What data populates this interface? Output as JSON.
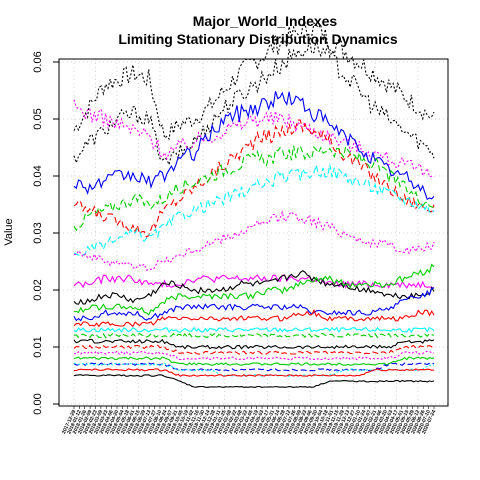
{
  "chart_data": {
    "type": "line",
    "title": "Major_World_Indexes",
    "subtitle": "Limiting Stationary Distribution Dynamics",
    "xlabel": "",
    "ylabel": "Value",
    "ylim": [
      0,
      0.068
    ],
    "yticks": [
      "0.00",
      "0.01",
      "0.02",
      "0.03",
      "0.04",
      "0.05",
      "0.06"
    ],
    "grid": true,
    "x_tick_labels": [
      "2017-12-29",
      "2018-01-12",
      "2018-01-26",
      "2018-02-09",
      "2018-02-23",
      "2018-03-09",
      "2018-03-23",
      "2018-04-06",
      "2018-04-20",
      "2018-05-04",
      "2018-05-18",
      "2018-06-01",
      "2018-06-15",
      "2018-06-29",
      "2018-07-13",
      "2018-07-27",
      "2018-08-10",
      "2018-08-24",
      "2018-09-07",
      "2018-09-21",
      "2018-10-05",
      "2018-10-19",
      "2018-11-02",
      "2018-11-16",
      "2018-11-30",
      "2018-12-14",
      "2018-12-28",
      "2019-01-11",
      "2019-01-25",
      "2019-02-08",
      "2019-02-22",
      "2019-03-08",
      "2019-03-22",
      "2019-04-05",
      "2019-04-19",
      "2019-05-03",
      "2019-05-17",
      "2019-05-31",
      "2019-06-14",
      "2019-06-28",
      "2019-07-12",
      "2019-07-26",
      "2019-08-09",
      "2019-08-23",
      "2019-09-06",
      "2019-09-20",
      "2019-10-04",
      "2019-10-18",
      "2019-11-01",
      "2019-11-15",
      "2019-11-29",
      "2019-12-13",
      "2019-12-27",
      "2020-01-10",
      "2020-01-24",
      "2020-02-07",
      "2020-02-21",
      "2020-03-06",
      "2020-03-20",
      "2020-04-03",
      "2020-04-17",
      "2020-05-01",
      "2020-05-15",
      "2020-05-29",
      "2020-06-12",
      "2020-06-26",
      "2020-07-10",
      "2020-07-24"
    ],
    "x_points": 160,
    "series": [
      {
        "color": "#000000",
        "dash": "2,2",
        "values": [
          0.048,
          0.052,
          0.056,
          0.057,
          0.058,
          0.057,
          0.047,
          0.049,
          0.05,
          0.052,
          0.055,
          0.058,
          0.06,
          0.062,
          0.064,
          0.065,
          0.066,
          0.064,
          0.062,
          0.06,
          0.058,
          0.056,
          0.054,
          0.052,
          0.05
        ]
      },
      {
        "color": "#000000",
        "dash": "2,2",
        "values": [
          0.043,
          0.046,
          0.048,
          0.05,
          0.051,
          0.05,
          0.042,
          0.044,
          0.046,
          0.049,
          0.052,
          0.054,
          0.056,
          0.058,
          0.06,
          0.062,
          0.063,
          0.061,
          0.058,
          0.055,
          0.052,
          0.05,
          0.048,
          0.046,
          0.044
        ]
      },
      {
        "color": "#ff00ff",
        "dash": "2,2",
        "values": [
          0.052,
          0.051,
          0.05,
          0.049,
          0.048,
          0.047,
          0.044,
          0.045,
          0.046,
          0.047,
          0.048,
          0.049,
          0.05,
          0.05,
          0.05,
          0.049,
          0.048,
          0.047,
          0.046,
          0.045,
          0.044,
          0.043,
          0.042,
          0.041,
          0.04
        ]
      },
      {
        "color": "#0000ff",
        "dash": "",
        "values": [
          0.039,
          0.038,
          0.039,
          0.04,
          0.04,
          0.039,
          0.04,
          0.043,
          0.044,
          0.047,
          0.05,
          0.051,
          0.052,
          0.053,
          0.054,
          0.053,
          0.051,
          0.049,
          0.047,
          0.045,
          0.043,
          0.041,
          0.04,
          0.038,
          0.036
        ]
      },
      {
        "color": "#ff0000",
        "dash": "6,3",
        "values": [
          0.035,
          0.034,
          0.033,
          0.032,
          0.031,
          0.03,
          0.034,
          0.036,
          0.038,
          0.04,
          0.042,
          0.044,
          0.046,
          0.047,
          0.048,
          0.049,
          0.048,
          0.046,
          0.044,
          0.042,
          0.04,
          0.038,
          0.036,
          0.035,
          0.034
        ]
      },
      {
        "color": "#00cd00",
        "dash": "6,3",
        "values": [
          0.031,
          0.033,
          0.034,
          0.035,
          0.036,
          0.035,
          0.036,
          0.038,
          0.039,
          0.04,
          0.041,
          0.042,
          0.043,
          0.043,
          0.044,
          0.044,
          0.044,
          0.045,
          0.044,
          0.043,
          0.042,
          0.04,
          0.038,
          0.036,
          0.035
        ]
      },
      {
        "color": "#00ffff",
        "dash": "6,3",
        "values": [
          0.026,
          0.027,
          0.028,
          0.029,
          0.03,
          0.029,
          0.031,
          0.033,
          0.034,
          0.035,
          0.036,
          0.037,
          0.038,
          0.039,
          0.04,
          0.04,
          0.041,
          0.041,
          0.04,
          0.039,
          0.038,
          0.037,
          0.036,
          0.035,
          0.034
        ]
      },
      {
        "color": "#ff00ff",
        "dash": "2,2",
        "values": [
          0.027,
          0.026,
          0.025,
          0.025,
          0.024,
          0.024,
          0.025,
          0.026,
          0.027,
          0.028,
          0.029,
          0.03,
          0.031,
          0.032,
          0.033,
          0.033,
          0.032,
          0.031,
          0.03,
          0.029,
          0.028,
          0.028,
          0.027,
          0.027,
          0.028
        ]
      },
      {
        "color": "#ff00ff",
        "dash": "",
        "values": [
          0.021,
          0.021,
          0.022,
          0.022,
          0.022,
          0.021,
          0.021,
          0.021,
          0.022,
          0.022,
          0.022,
          0.022,
          0.022,
          0.022,
          0.022,
          0.022,
          0.022,
          0.021,
          0.021,
          0.021,
          0.021,
          0.021,
          0.021,
          0.021,
          0.021
        ]
      },
      {
        "color": "#000000",
        "dash": "",
        "values": [
          0.018,
          0.018,
          0.019,
          0.019,
          0.018,
          0.019,
          0.021,
          0.021,
          0.02,
          0.02,
          0.02,
          0.021,
          0.021,
          0.021,
          0.022,
          0.023,
          0.022,
          0.021,
          0.021,
          0.02,
          0.02,
          0.019,
          0.019,
          0.019,
          0.02
        ]
      },
      {
        "color": "#00cd00",
        "dash": "",
        "values": [
          0.016,
          0.017,
          0.017,
          0.017,
          0.017,
          0.016,
          0.018,
          0.019,
          0.019,
          0.019,
          0.019,
          0.019,
          0.019,
          0.02,
          0.02,
          0.021,
          0.022,
          0.022,
          0.021,
          0.021,
          0.021,
          0.021,
          0.022,
          0.023,
          0.024
        ]
      },
      {
        "color": "#0000ff",
        "dash": "",
        "values": [
          0.015,
          0.015,
          0.016,
          0.016,
          0.016,
          0.015,
          0.016,
          0.017,
          0.017,
          0.017,
          0.017,
          0.017,
          0.017,
          0.017,
          0.017,
          0.017,
          0.016,
          0.016,
          0.016,
          0.016,
          0.016,
          0.017,
          0.018,
          0.019,
          0.02
        ]
      },
      {
        "color": "#ff0000",
        "dash": "",
        "values": [
          0.014,
          0.014,
          0.014,
          0.014,
          0.014,
          0.014,
          0.015,
          0.015,
          0.015,
          0.015,
          0.015,
          0.015,
          0.015,
          0.015,
          0.015,
          0.016,
          0.016,
          0.015,
          0.015,
          0.015,
          0.015,
          0.015,
          0.015,
          0.016,
          0.016
        ]
      },
      {
        "color": "#00ffff",
        "dash": "",
        "values": [
          0.013,
          0.013,
          0.013,
          0.013,
          0.013,
          0.013,
          0.013,
          0.013,
          0.013,
          0.013,
          0.013,
          0.013,
          0.013,
          0.013,
          0.013,
          0.013,
          0.013,
          0.013,
          0.013,
          0.013,
          0.013,
          0.013,
          0.013,
          0.013,
          0.013
        ]
      },
      {
        "color": "#00cd00",
        "dash": "6,3",
        "values": [
          0.012,
          0.012,
          0.012,
          0.012,
          0.012,
          0.012,
          0.012,
          0.012,
          0.012,
          0.012,
          0.012,
          0.012,
          0.012,
          0.012,
          0.012,
          0.012,
          0.012,
          0.012,
          0.012,
          0.012,
          0.012,
          0.012,
          0.012,
          0.012,
          0.012
        ]
      },
      {
        "color": "#000000",
        "dash": "",
        "values": [
          0.011,
          0.011,
          0.011,
          0.011,
          0.011,
          0.011,
          0.011,
          0.01,
          0.01,
          0.01,
          0.01,
          0.01,
          0.01,
          0.01,
          0.01,
          0.01,
          0.01,
          0.01,
          0.01,
          0.01,
          0.01,
          0.01,
          0.011,
          0.011,
          0.011
        ]
      },
      {
        "color": "#ff0000",
        "dash": "6,3",
        "values": [
          0.01,
          0.01,
          0.01,
          0.01,
          0.01,
          0.01,
          0.01,
          0.009,
          0.009,
          0.009,
          0.009,
          0.009,
          0.009,
          0.009,
          0.009,
          0.009,
          0.009,
          0.009,
          0.009,
          0.009,
          0.009,
          0.009,
          0.01,
          0.01,
          0.01
        ]
      },
      {
        "color": "#ff00ff",
        "dash": "2,2",
        "values": [
          0.009,
          0.009,
          0.009,
          0.009,
          0.009,
          0.009,
          0.009,
          0.008,
          0.008,
          0.008,
          0.008,
          0.008,
          0.008,
          0.008,
          0.008,
          0.008,
          0.008,
          0.008,
          0.008,
          0.008,
          0.008,
          0.008,
          0.009,
          0.009,
          0.009
        ]
      },
      {
        "color": "#00cd00",
        "dash": "",
        "values": [
          0.008,
          0.008,
          0.008,
          0.008,
          0.008,
          0.008,
          0.008,
          0.007,
          0.007,
          0.007,
          0.007,
          0.007,
          0.007,
          0.007,
          0.007,
          0.007,
          0.007,
          0.007,
          0.007,
          0.007,
          0.007,
          0.007,
          0.008,
          0.008,
          0.008
        ]
      },
      {
        "color": "#0000ff",
        "dash": "6,3",
        "values": [
          0.007,
          0.007,
          0.007,
          0.007,
          0.007,
          0.007,
          0.007,
          0.006,
          0.006,
          0.006,
          0.006,
          0.006,
          0.006,
          0.006,
          0.006,
          0.006,
          0.006,
          0.006,
          0.006,
          0.006,
          0.006,
          0.007,
          0.007,
          0.007,
          0.007
        ]
      },
      {
        "color": "#00ffff",
        "dash": "2,2",
        "values": [
          0.007,
          0.007,
          0.007,
          0.007,
          0.007,
          0.007,
          0.007,
          0.006,
          0.006,
          0.006,
          0.005,
          0.005,
          0.005,
          0.005,
          0.005,
          0.005,
          0.005,
          0.005,
          0.006,
          0.006,
          0.006,
          0.006,
          0.006,
          0.006,
          0.007
        ]
      },
      {
        "color": "#ff0000",
        "dash": "",
        "values": [
          0.006,
          0.006,
          0.006,
          0.006,
          0.006,
          0.006,
          0.006,
          0.005,
          0.005,
          0.005,
          0.005,
          0.005,
          0.005,
          0.005,
          0.005,
          0.005,
          0.005,
          0.005,
          0.005,
          0.005,
          0.006,
          0.006,
          0.006,
          0.006,
          0.006
        ]
      },
      {
        "color": "#000000",
        "dash": "",
        "values": [
          0.005,
          0.005,
          0.005,
          0.005,
          0.005,
          0.005,
          0.005,
          0.004,
          0.003,
          0.003,
          0.003,
          0.003,
          0.003,
          0.003,
          0.003,
          0.003,
          0.003,
          0.004,
          0.004,
          0.004,
          0.004,
          0.004,
          0.004,
          0.004,
          0.004
        ]
      }
    ]
  }
}
